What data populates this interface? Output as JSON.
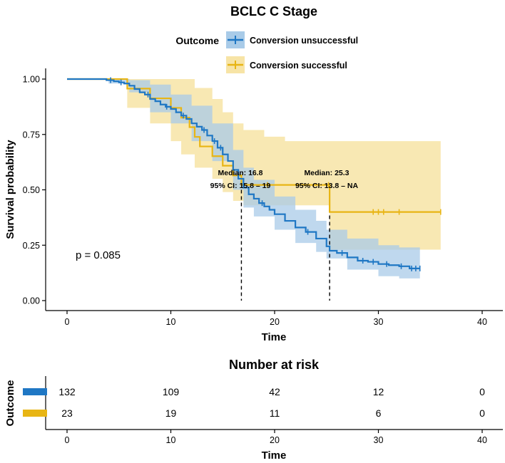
{
  "chart_data": [
    {
      "type": "line",
      "subtype": "kaplan-meier",
      "title": "BCLC C Stage",
      "xlabel": "Time",
      "ylabel": "Survival probability",
      "xlim": [
        0,
        40
      ],
      "ylim": [
        0,
        1
      ],
      "x_ticks": [
        "0",
        "10",
        "20",
        "30",
        "40"
      ],
      "y_ticks": [
        "0.00",
        "0.25",
        "0.50",
        "0.75",
        "1.00"
      ],
      "legend": {
        "title": "Outcome",
        "placement": "top",
        "entries": [
          "Conversion unsuccessful",
          "Conversion successful"
        ]
      },
      "pvalue_text": "p = 0.085",
      "series": [
        {
          "name": "Conversion unsuccessful",
          "color": "#1f77c4",
          "ci_color": "#a9cbe8",
          "steps": [
            [
              0,
              1
            ],
            [
              3.5,
              1
            ],
            [
              3.8,
              0.995
            ],
            [
              4.5,
              0.99
            ],
            [
              5,
              0.985
            ],
            [
              5.5,
              0.98
            ],
            [
              6,
              0.97
            ],
            [
              6.5,
              0.955
            ],
            [
              7,
              0.94
            ],
            [
              7.5,
              0.93
            ],
            [
              8,
              0.91
            ],
            [
              8.5,
              0.9
            ],
            [
              9,
              0.885
            ],
            [
              9.5,
              0.875
            ],
            [
              10,
              0.865
            ],
            [
              10.5,
              0.85
            ],
            [
              11,
              0.835
            ],
            [
              11.5,
              0.82
            ],
            [
              12,
              0.8
            ],
            [
              12.5,
              0.785
            ],
            [
              13,
              0.77
            ],
            [
              13.5,
              0.745
            ],
            [
              14,
              0.72
            ],
            [
              14.5,
              0.69
            ],
            [
              15,
              0.66
            ],
            [
              15.5,
              0.63
            ],
            [
              16,
              0.59
            ],
            [
              16.5,
              0.55
            ],
            [
              17,
              0.51
            ],
            [
              17.5,
              0.48
            ],
            [
              18,
              0.46
            ],
            [
              18.5,
              0.44
            ],
            [
              19,
              0.425
            ],
            [
              19.5,
              0.41
            ],
            [
              20,
              0.39
            ],
            [
              21,
              0.36
            ],
            [
              22,
              0.33
            ],
            [
              23,
              0.31
            ],
            [
              24,
              0.28
            ],
            [
              25,
              0.245
            ],
            [
              25.3,
              0.225
            ],
            [
              26,
              0.215
            ],
            [
              27,
              0.195
            ],
            [
              28,
              0.18
            ],
            [
              29,
              0.175
            ],
            [
              30,
              0.165
            ],
            [
              31,
              0.16
            ],
            [
              32,
              0.155
            ],
            [
              33,
              0.145
            ],
            [
              34,
              0.145
            ]
          ],
          "ci_upper": [
            [
              0,
              1
            ],
            [
              4,
              1
            ],
            [
              6,
              0.995
            ],
            [
              8,
              0.975
            ],
            [
              10,
              0.93
            ],
            [
              12,
              0.88
            ],
            [
              14,
              0.8
            ],
            [
              16,
              0.68
            ],
            [
              17,
              0.6
            ],
            [
              18,
              0.545
            ],
            [
              20,
              0.47
            ],
            [
              22,
              0.41
            ],
            [
              24,
              0.36
            ],
            [
              25,
              0.32
            ],
            [
              27,
              0.28
            ],
            [
              30,
              0.25
            ],
            [
              32,
              0.24
            ],
            [
              34,
              0.24
            ]
          ],
          "ci_lower": [
            [
              0,
              1
            ],
            [
              4,
              0.98
            ],
            [
              6,
              0.94
            ],
            [
              8,
              0.85
            ],
            [
              10,
              0.8
            ],
            [
              12,
              0.72
            ],
            [
              14,
              0.63
            ],
            [
              16,
              0.5
            ],
            [
              17,
              0.42
            ],
            [
              18,
              0.38
            ],
            [
              20,
              0.32
            ],
            [
              22,
              0.26
            ],
            [
              24,
              0.22
            ],
            [
              25,
              0.19
            ],
            [
              27,
              0.14
            ],
            [
              30,
              0.11
            ],
            [
              32,
              0.1
            ],
            [
              34,
              0.085
            ]
          ],
          "censor_times": [
            4.2,
            5.2,
            7.8,
            9.6,
            11.2,
            13.2,
            14.2,
            14.8,
            18.8,
            23.2,
            26.5,
            28.5,
            29.5,
            30.8,
            32.2,
            33.2,
            33.6,
            34
          ]
        },
        {
          "name": "Conversion successful",
          "color": "#e8b514",
          "ci_color": "#f7e4a6",
          "steps": [
            [
              0,
              1
            ],
            [
              5.8,
              1
            ],
            [
              5.8,
              0.957
            ],
            [
              8,
              0.913
            ],
            [
              10,
              0.87
            ],
            [
              11,
              0.826
            ],
            [
              11.8,
              0.783
            ],
            [
              12.3,
              0.739
            ],
            [
              12.8,
              0.696
            ],
            [
              14,
              0.652
            ],
            [
              15,
              0.609
            ],
            [
              16,
              0.565
            ],
            [
              16.8,
              0.522
            ],
            [
              20.5,
              0.522
            ],
            [
              25.3,
              0.522
            ],
            [
              25.3,
              0.4
            ],
            [
              36,
              0.4
            ]
          ],
          "ci_upper": [
            [
              0,
              1
            ],
            [
              5.8,
              1
            ],
            [
              8,
              1
            ],
            [
              11,
              1
            ],
            [
              12.3,
              0.96
            ],
            [
              14,
              0.91
            ],
            [
              15,
              0.85
            ],
            [
              16,
              0.8
            ],
            [
              17,
              0.77
            ],
            [
              19,
              0.74
            ],
            [
              21,
              0.72
            ],
            [
              25.3,
              0.72
            ],
            [
              36,
              0.68
            ]
          ],
          "ci_lower": [
            [
              0,
              1
            ],
            [
              5.8,
              0.87
            ],
            [
              8,
              0.8
            ],
            [
              10,
              0.72
            ],
            [
              11,
              0.66
            ],
            [
              12.3,
              0.6
            ],
            [
              14,
              0.55
            ],
            [
              15,
              0.49
            ],
            [
              16,
              0.45
            ],
            [
              17,
              0.43
            ],
            [
              19,
              0.43
            ],
            [
              25.3,
              0.43
            ],
            [
              25.3,
              0.23
            ],
            [
              36,
              0.23
            ]
          ],
          "censor_times": [
            19.3,
            25.2,
            29.5,
            30,
            30.5,
            32,
            36
          ]
        }
      ],
      "medians": [
        {
          "time": 16.8,
          "prob": 0.5,
          "label": "Median: 16.8",
          "ci_label": "95% CI: 15.8 – 19"
        },
        {
          "time": 25.3,
          "prob": 0.5,
          "label": "Median: 25.3",
          "ci_label": "95% CI: 13.8 – NA"
        }
      ]
    },
    {
      "type": "table",
      "title": "Number at risk",
      "xlabel": "Time",
      "ylabel": "Outcome",
      "x_ticks": [
        "0",
        "10",
        "20",
        "30",
        "40"
      ],
      "times": [
        0,
        10,
        20,
        30,
        40
      ],
      "rows": [
        {
          "name": "Conversion unsuccessful",
          "color": "#1f77c4",
          "values": [
            "132",
            "109",
            "42",
            "12",
            "0"
          ]
        },
        {
          "name": "Conversion successful",
          "color": "#e8b514",
          "values": [
            "23",
            "19",
            "11",
            "6",
            "0"
          ]
        }
      ]
    }
  ]
}
